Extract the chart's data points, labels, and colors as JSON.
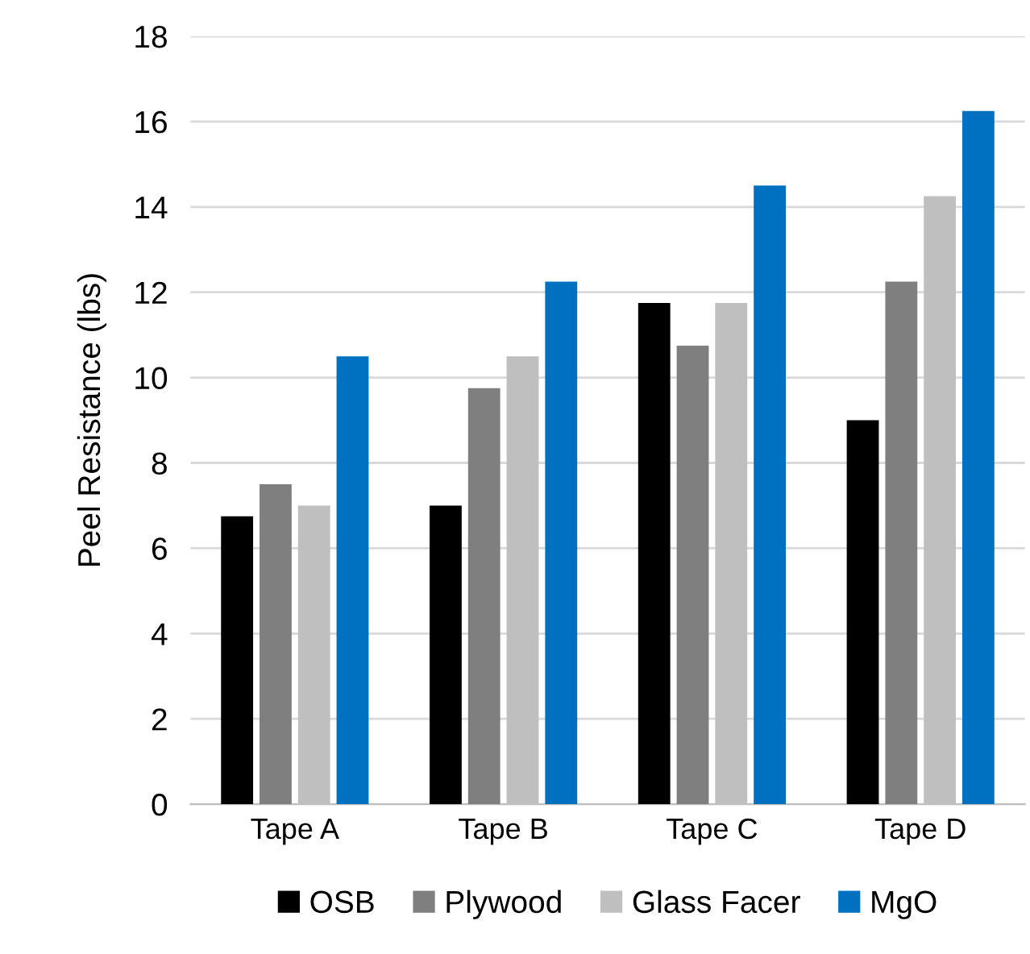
{
  "chart_data": {
    "type": "bar",
    "ylabel": "Peel Resistance (lbs)",
    "categories": [
      "Tape A",
      "Tape B",
      "Tape C",
      "Tape D"
    ],
    "series": [
      {
        "name": "OSB",
        "color": "#000000",
        "values": [
          6.75,
          7.0,
          11.75,
          9.0
        ]
      },
      {
        "name": "Plywood",
        "color": "#7f7f7f",
        "values": [
          7.5,
          9.75,
          10.75,
          12.25
        ]
      },
      {
        "name": "Glass Facer",
        "color": "#bfbfbf",
        "values": [
          7.0,
          10.5,
          11.75,
          14.25
        ]
      },
      {
        "name": "MgO",
        "color": "#0070c0",
        "values": [
          10.5,
          12.25,
          14.5,
          16.25
        ]
      }
    ],
    "ylim": [
      0,
      18
    ],
    "yticks": [
      0,
      2,
      4,
      6,
      8,
      10,
      12,
      14,
      16,
      18
    ],
    "grid": "y",
    "legend": "bottom"
  }
}
